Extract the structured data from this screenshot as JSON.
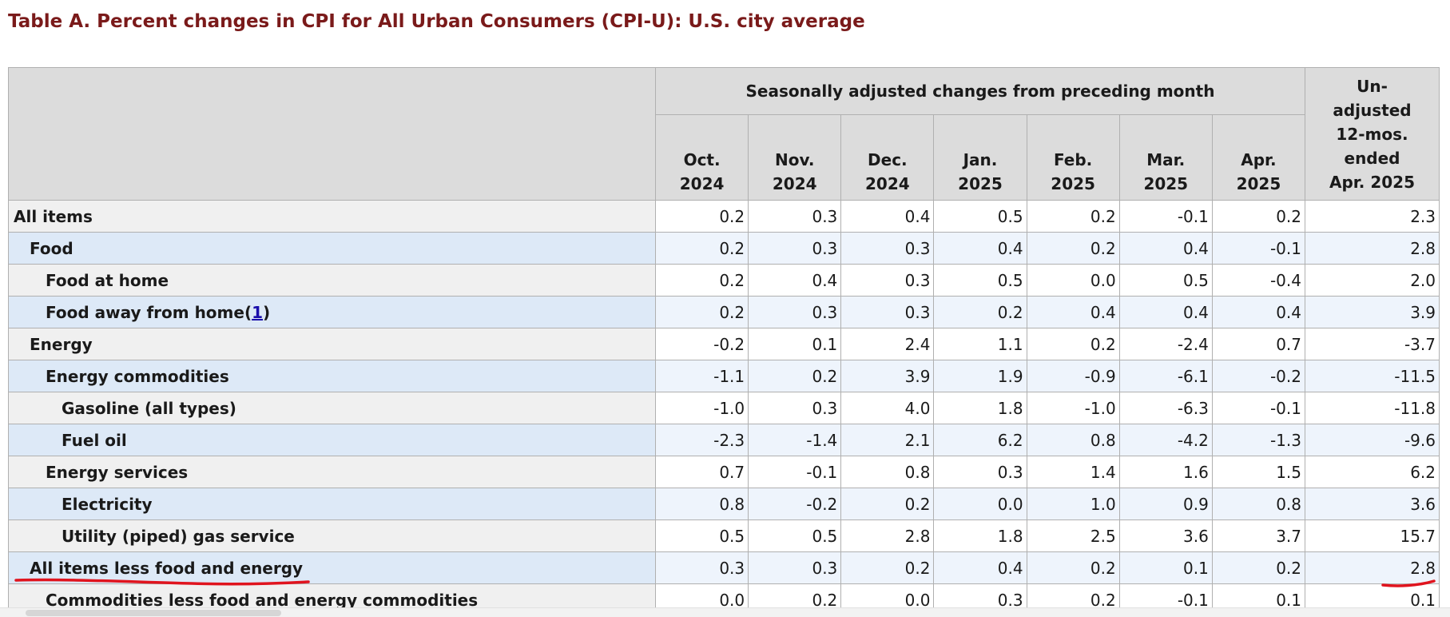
{
  "title": "Table A. Percent changes in CPI for All Urban Consumers (CPI-U): U.S. city average",
  "header": {
    "group_label": "Seasonally adjusted changes from preceding month",
    "months": [
      {
        "month": "Oct.",
        "year": "2024"
      },
      {
        "month": "Nov.",
        "year": "2024"
      },
      {
        "month": "Dec.",
        "year": "2024"
      },
      {
        "month": "Jan.",
        "year": "2025"
      },
      {
        "month": "Feb.",
        "year": "2025"
      },
      {
        "month": "Mar.",
        "year": "2025"
      },
      {
        "month": "Apr.",
        "year": "2025"
      }
    ],
    "unadjusted": [
      "Un-",
      "adjusted",
      "12-mos.",
      "ended",
      "Apr. 2025"
    ]
  },
  "rows": [
    {
      "label": "All items",
      "level": 0,
      "values": [
        "0.2",
        "0.3",
        "0.4",
        "0.5",
        "0.2",
        "-0.1",
        "0.2"
      ],
      "unadjusted": "2.3"
    },
    {
      "label": "Food",
      "level": 1,
      "values": [
        "0.2",
        "0.3",
        "0.3",
        "0.4",
        "0.2",
        "0.4",
        "-0.1"
      ],
      "unadjusted": "2.8"
    },
    {
      "label": "Food at home",
      "level": 2,
      "values": [
        "0.2",
        "0.4",
        "0.3",
        "0.5",
        "0.0",
        "0.5",
        "-0.4"
      ],
      "unadjusted": "2.0"
    },
    {
      "label": "Food away from home",
      "level": 2,
      "footnote": "1",
      "values": [
        "0.2",
        "0.3",
        "0.3",
        "0.2",
        "0.4",
        "0.4",
        "0.4"
      ],
      "unadjusted": "3.9"
    },
    {
      "label": "Energy",
      "level": 1,
      "values": [
        "-0.2",
        "0.1",
        "2.4",
        "1.1",
        "0.2",
        "-2.4",
        "0.7"
      ],
      "unadjusted": "-3.7"
    },
    {
      "label": "Energy commodities",
      "level": 2,
      "values": [
        "-1.1",
        "0.2",
        "3.9",
        "1.9",
        "-0.9",
        "-6.1",
        "-0.2"
      ],
      "unadjusted": "-11.5"
    },
    {
      "label": "Gasoline (all types)",
      "level": 3,
      "values": [
        "-1.0",
        "0.3",
        "4.0",
        "1.8",
        "-1.0",
        "-6.3",
        "-0.1"
      ],
      "unadjusted": "-11.8"
    },
    {
      "label": "Fuel oil",
      "level": 3,
      "values": [
        "-2.3",
        "-1.4",
        "2.1",
        "6.2",
        "0.8",
        "-4.2",
        "-1.3"
      ],
      "unadjusted": "-9.6"
    },
    {
      "label": "Energy services",
      "level": 2,
      "values": [
        "0.7",
        "-0.1",
        "0.8",
        "0.3",
        "1.4",
        "1.6",
        "1.5"
      ],
      "unadjusted": "6.2"
    },
    {
      "label": "Electricity",
      "level": 3,
      "values": [
        "0.8",
        "-0.2",
        "0.2",
        "0.0",
        "1.0",
        "0.9",
        "0.8"
      ],
      "unadjusted": "3.6"
    },
    {
      "label": "Utility (piped) gas service",
      "level": 3,
      "values": [
        "0.5",
        "0.5",
        "2.8",
        "1.8",
        "2.5",
        "3.6",
        "3.7"
      ],
      "unadjusted": "15.7"
    },
    {
      "label": "All items less food and energy",
      "level": 1,
      "values": [
        "0.3",
        "0.3",
        "0.2",
        "0.4",
        "0.2",
        "0.1",
        "0.2"
      ],
      "unadjusted": "2.8"
    },
    {
      "label": "Commodities less food and energy commodities",
      "level": 2,
      "values": [
        "0.0",
        "0.2",
        "0.0",
        "0.3",
        "0.2",
        "-0.1",
        "0.1"
      ],
      "unadjusted": "0.1"
    }
  ],
  "colors": {
    "title": "#7a1a1a",
    "header_bg": "#dcdcdc",
    "stub_odd": "#f0f0f0",
    "stub_even": "#dde9f7",
    "value_even": "#eef4fc",
    "annotation": "#e0141e",
    "link": "#1a0dab"
  }
}
